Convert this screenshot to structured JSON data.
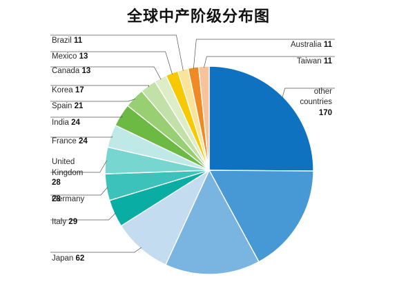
{
  "chart_data": {
    "type": "pie",
    "title": "全球中产阶级分布图",
    "slices": [
      {
        "label": "other countries",
        "value": 170,
        "color": "#0e72c0"
      },
      {
        "label": "",
        "value": 115,
        "color": "#4699d4"
      },
      {
        "label": "",
        "value": 100,
        "color": "#79b5e0"
      },
      {
        "label": "Japan",
        "value": 62,
        "color": "#c3dcf0"
      },
      {
        "label": "Italy",
        "value": 29,
        "color": "#0aada4"
      },
      {
        "label": "Germany",
        "value": 28,
        "color": "#3dc2bb"
      },
      {
        "label": "United Kingdom",
        "value": 28,
        "color": "#78d6d1"
      },
      {
        "label": "France",
        "value": 24,
        "color": "#bfe9e7"
      },
      {
        "label": "India",
        "value": 24,
        "color": "#6cb944"
      },
      {
        "label": "Spain",
        "value": 21,
        "color": "#98cf72"
      },
      {
        "label": "Korea",
        "value": 17,
        "color": "#c2e1a8"
      },
      {
        "label": "Canada",
        "value": 13,
        "color": "#dcedc8"
      },
      {
        "label": "Mexico",
        "value": 13,
        "color": "#f6c900"
      },
      {
        "label": "Brazil",
        "value": 11,
        "color": "#fbe49a"
      },
      {
        "label": "Australia",
        "value": 11,
        "color": "#ef8a25"
      },
      {
        "label": "Taiwan",
        "value": 11,
        "color": "#f7c39a"
      }
    ],
    "legend": "none"
  }
}
